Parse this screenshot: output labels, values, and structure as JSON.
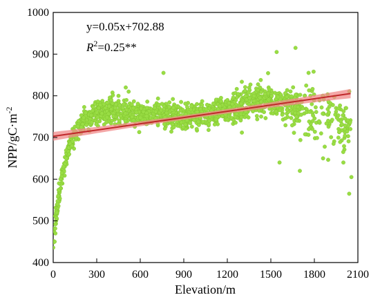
{
  "chart_data": {
    "type": "scatter",
    "xlabel": "Elevation/m",
    "ylabel_main": "NPP/gC·m",
    "ylabel_sup": "-2",
    "xlim": [
      0,
      2100
    ],
    "ylim": [
      400,
      1000
    ],
    "xticks": [
      0,
      300,
      600,
      900,
      1200,
      1500,
      1800,
      2100
    ],
    "yticks": [
      400,
      500,
      600,
      700,
      800,
      900,
      1000
    ],
    "grid": false,
    "annotation": {
      "equation": "y=0.05x+702.88",
      "r2_var": "R",
      "r2_sup": "2",
      "r2_rest": "=0.25**"
    },
    "fit": {
      "slope": 0.05,
      "intercept": 702.88,
      "x_range": [
        0,
        2050
      ]
    },
    "colors": {
      "points": "#99dd44",
      "points_edge": "#7bbf2a",
      "fit_line": "#c0282a",
      "ci_band": "#f08a8a"
    },
    "points_highlight": [
      [
        10,
        450
      ],
      [
        15,
        470
      ],
      [
        20,
        500
      ],
      [
        25,
        520
      ],
      [
        30,
        540
      ],
      [
        35,
        560
      ],
      [
        40,
        590
      ],
      [
        50,
        600
      ],
      [
        60,
        615
      ],
      [
        70,
        630
      ],
      [
        90,
        650
      ],
      [
        110,
        660
      ],
      [
        130,
        680
      ],
      [
        160,
        700
      ],
      [
        190,
        710
      ],
      [
        230,
        730
      ],
      [
        300,
        760
      ],
      [
        350,
        780
      ],
      [
        400,
        790
      ],
      [
        450,
        800
      ],
      [
        500,
        820
      ],
      [
        520,
        810
      ],
      [
        760,
        855
      ],
      [
        1540,
        905
      ],
      [
        1670,
        915
      ],
      [
        1560,
        640
      ],
      [
        1760,
        855
      ],
      [
        1900,
        760
      ],
      [
        2000,
        640
      ],
      [
        2040,
        565
      ],
      [
        2055,
        605
      ],
      [
        1700,
        620
      ],
      [
        1860,
        650
      ]
    ]
  }
}
